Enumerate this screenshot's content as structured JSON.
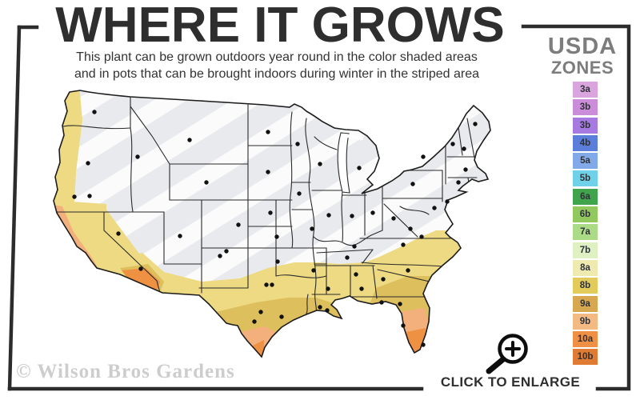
{
  "header": {
    "title": "WHERE IT GROWS",
    "subtitle_line1": "This plant can be grown outdoors year round in the color shaded areas",
    "subtitle_line2": "and in pots that can be brought indoors during winter in the striped area"
  },
  "legend": {
    "title_line1": "USDA",
    "title_line2": "ZONES",
    "zones": [
      {
        "label": "3a",
        "color": "#daa4df"
      },
      {
        "label": "3b",
        "color": "#cb8cda"
      },
      {
        "label": "3b",
        "color": "#a77ae2"
      },
      {
        "label": "4b",
        "color": "#5c7edb"
      },
      {
        "label": "5a",
        "color": "#82aae8"
      },
      {
        "label": "5b",
        "color": "#6fd2e9"
      },
      {
        "label": "6a",
        "color": "#3fa44c"
      },
      {
        "label": "6b",
        "color": "#92c95f"
      },
      {
        "label": "7a",
        "color": "#abdb86"
      },
      {
        "label": "7b",
        "color": "#dff0c3"
      },
      {
        "label": "8a",
        "color": "#efeab0"
      },
      {
        "label": "8b",
        "color": "#e2ca5b"
      },
      {
        "label": "9a",
        "color": "#d8a850"
      },
      {
        "label": "9b",
        "color": "#f3ba83"
      },
      {
        "label": "10a",
        "color": "#f09044"
      },
      {
        "label": "10b",
        "color": "#e07b33"
      }
    ]
  },
  "map": {
    "colors": {
      "base": "#e9eaed",
      "stripe": "#ffffff",
      "outline": "#1c1c1c",
      "state_line": "#2a2a2a",
      "band_yellow": "#eeda82",
      "coast_gold": "#ddbf5e",
      "warm_peach": "#f4b07c",
      "hot_orange": "#ef9143",
      "lake": "#ffffff",
      "dot": "#111111",
      "frame": "#2c2c2c"
    },
    "city_dots": [
      [
        118,
        140
      ],
      [
        110,
        204
      ],
      [
        93,
        246
      ],
      [
        112,
        245
      ],
      [
        148,
        292
      ],
      [
        172,
        196
      ],
      [
        237,
        175
      ],
      [
        258,
        228
      ],
      [
        225,
        295
      ],
      [
        176,
        336
      ],
      [
        298,
        281
      ],
      [
        275,
        320
      ],
      [
        283,
        314
      ],
      [
        333,
        356
      ],
      [
        340,
        356
      ],
      [
        326,
        390
      ],
      [
        318,
        402
      ],
      [
        352,
        396
      ],
      [
        347,
        327
      ],
      [
        392,
        338
      ],
      [
        346,
        296
      ],
      [
        338,
        266
      ],
      [
        335,
        215
      ],
      [
        335,
        165
      ],
      [
        372,
        180
      ],
      [
        400,
        205
      ],
      [
        374,
        242
      ],
      [
        390,
        286
      ],
      [
        410,
        361
      ],
      [
        400,
        384
      ],
      [
        409,
        388
      ],
      [
        411,
        269
      ],
      [
        440,
        270
      ],
      [
        449,
        210
      ],
      [
        466,
        266
      ],
      [
        443,
        308
      ],
      [
        434,
        322
      ],
      [
        445,
        343
      ],
      [
        452,
        361
      ],
      [
        479,
        349
      ],
      [
        477,
        378
      ],
      [
        510,
        338
      ],
      [
        504,
        306
      ],
      [
        527,
        296
      ],
      [
        513,
        286
      ],
      [
        492,
        273
      ],
      [
        516,
        230
      ],
      [
        529,
        196
      ],
      [
        594,
        155
      ],
      [
        566,
        180
      ],
      [
        580,
        186
      ],
      [
        582,
        212
      ],
      [
        573,
        228
      ],
      [
        559,
        252
      ],
      [
        543,
        260
      ],
      [
        500,
        380
      ],
      [
        504,
        407
      ],
      [
        529,
        431
      ]
    ]
  },
  "watermark": {
    "text": "© Wilson Bros Gardens"
  },
  "enlarge": {
    "label": "CLICK TO ENLARGE",
    "icon": "magnifier-plus-icon"
  }
}
